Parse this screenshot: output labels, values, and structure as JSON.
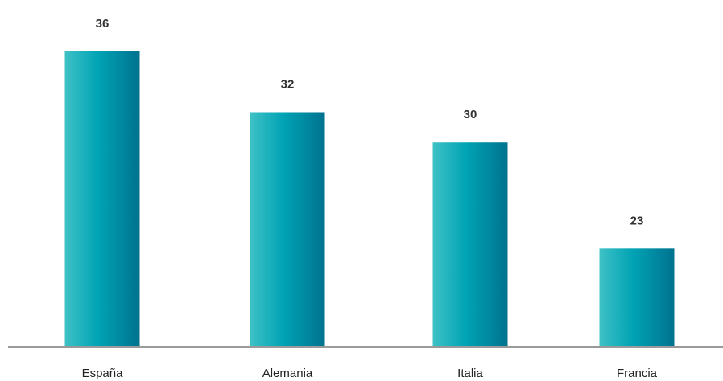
{
  "chart_data": {
    "type": "bar",
    "title": "",
    "xlabel": "",
    "ylabel": "",
    "categories": [
      "España",
      "Alemania",
      "Italia",
      "Francia"
    ],
    "values": [
      36,
      32,
      30,
      23
    ],
    "data_labels": [
      "36",
      "32",
      "30",
      "23"
    ],
    "ylim": [
      16.5,
      36
    ],
    "grid": false,
    "legend": "none",
    "colors": {
      "bar_light": "#3ec1c6",
      "bar_mid": "#00a3b4",
      "bar_dark": "#00728f",
      "axis": "#9a9a9a"
    }
  }
}
